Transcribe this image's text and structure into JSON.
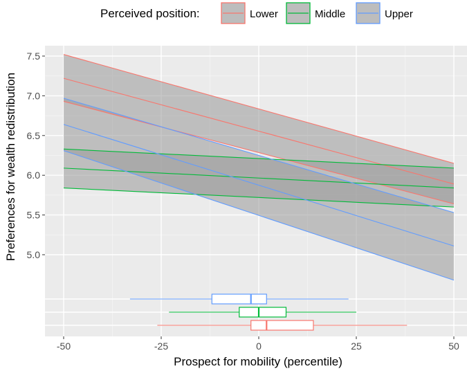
{
  "chart_data": {
    "type": "line",
    "xlabel": "Prospect for mobility (percentile)",
    "ylabel": "Preferences for wealth redistribution",
    "xlim": [
      -55,
      52
    ],
    "ylim": [
      4.6,
      7.6
    ],
    "x_ticks": [
      -50,
      -25,
      0,
      25,
      50
    ],
    "x_tick_labels": [
      "-50",
      "-25",
      "0",
      "25",
      "50"
    ],
    "y_ticks": [
      5.0,
      5.5,
      6.0,
      6.5,
      7.0,
      7.5
    ],
    "y_tick_labels": [
      "5.0",
      "5.5",
      "6.0",
      "6.5",
      "7.0",
      "7.5"
    ],
    "grid": true,
    "legend": {
      "title": "Perceived position:",
      "placement": "top",
      "entries": [
        "Lower",
        "Middle",
        "Upper"
      ]
    },
    "series": [
      {
        "name": "Lower",
        "color": "#f8766d",
        "x": [
          -50,
          50
        ],
        "fit": [
          7.22,
          5.89
        ],
        "lower": [
          6.93,
          5.64
        ],
        "upper": [
          7.52,
          6.15
        ],
        "boxplot": {
          "min": -26,
          "q1": -2,
          "median": 2,
          "q3": 14,
          "max": 38
        }
      },
      {
        "name": "Middle",
        "color": "#00ba38",
        "x": [
          -50,
          50
        ],
        "fit": [
          6.09,
          5.84
        ],
        "lower": [
          5.84,
          5.6
        ],
        "upper": [
          6.33,
          6.09
        ],
        "boxplot": {
          "min": -23,
          "q1": -5,
          "median": 0,
          "q3": 7,
          "max": 25
        }
      },
      {
        "name": "Upper",
        "color": "#619cff",
        "x": [
          -50,
          50
        ],
        "fit": [
          6.64,
          5.11
        ],
        "lower": [
          6.31,
          4.68
        ],
        "upper": [
          6.97,
          5.53
        ],
        "boxplot": {
          "min": -33,
          "q1": -12,
          "median": -2,
          "q3": 2,
          "max": 23
        }
      }
    ],
    "band_fill": "#999999",
    "panel_background": "#ebebeb"
  }
}
